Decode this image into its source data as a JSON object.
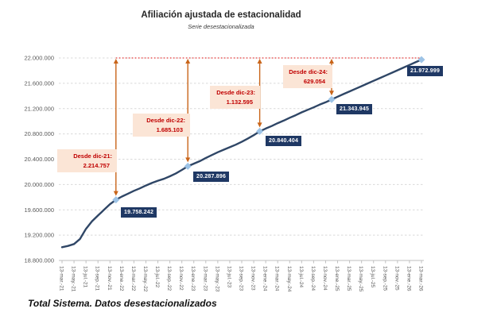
{
  "footer": {
    "text": "Total Sistema. Datos desestacionalizados"
  },
  "chart_data": {
    "type": "line",
    "title": "Afiliación ajustada de estacionalidad",
    "subtitle": "Serie desestacionalizada",
    "xlabel": "",
    "ylabel": "",
    "ylim": [
      18800000,
      22000000
    ],
    "y_step": 400000,
    "grid": "horizontal-dashed",
    "legend_position": "none",
    "y_tick_labels": [
      "22.000.000",
      "21.600.000",
      "21.200.000",
      "20.800.000",
      "20.400.000",
      "20.000.000",
      "19.600.000",
      "19.200.000",
      "18.800.000"
    ],
    "x_tick_labels": [
      "13-mar.-21",
      "13-may.-21",
      "13-jul.-21",
      "13-sep.-21",
      "13-nov.-21",
      "13-ene.-22",
      "13-mar.-22",
      "13-may.-22",
      "13-jul.-22",
      "13-sep.-22",
      "13-nov.-22",
      "13-ene.-23",
      "13-mar.-23",
      "13-may.-23",
      "13-jul.-23",
      "13-sep.-23",
      "13-nov.-23",
      "13-ene.-24",
      "13-mar.-24",
      "13-may.-24",
      "13-jul.-24",
      "13-sep.-24",
      "13-nov.-24",
      "13-ene.-25",
      "13-mar.-25",
      "13-may.-25",
      "13-jul.-25",
      "13-sep.-25",
      "13-nov.-25",
      "13-ene.-26",
      "13-mar.-26"
    ],
    "series": [
      {
        "name": "Serie desestacionalizada",
        "start_month": "mar-21",
        "end_month": "mar-26",
        "monthly_values": [
          19010000,
          19030000,
          19060000,
          19140000,
          19300000,
          19420000,
          19510000,
          19600000,
          19690000,
          19758242,
          19810000,
          19855000,
          19900000,
          19940000,
          19985000,
          20025000,
          20060000,
          20090000,
          20130000,
          20175000,
          20230000,
          20287896,
          20330000,
          20370000,
          20420000,
          20465000,
          20510000,
          20550000,
          20590000,
          20630000,
          20675000,
          20725000,
          20780000,
          20840404,
          20885000,
          20925000,
          20970000,
          21010000,
          21055000,
          21095000,
          21140000,
          21180000,
          21220000,
          21262000,
          21300000,
          21343945,
          21388000,
          21430000,
          21472000,
          21513000,
          21555000,
          21597000,
          21638000,
          21680000,
          21722000,
          21763000,
          21805000,
          21848000,
          21890000,
          21932000,
          21972999
        ]
      }
    ],
    "highlighted_points": [
      {
        "month_index": 9,
        "month": "dic-21",
        "value": 19758242,
        "label": "19.758.242"
      },
      {
        "month_index": 21,
        "month": "dic-22",
        "value": 20287896,
        "label": "20.287.896"
      },
      {
        "month_index": 33,
        "month": "dic-23",
        "value": 20840404,
        "label": "20.840.404"
      },
      {
        "month_index": 45,
        "month": "dic-24",
        "value": 21343945,
        "label": "21.343.945"
      },
      {
        "month_index": 60,
        "month": "mar-26",
        "value": 21972999,
        "label": "21.972.999"
      }
    ],
    "annotations": [
      {
        "label": "Desde dic-21:",
        "value": "2.214.757",
        "month_index": 9
      },
      {
        "label": "Desde dic-22:",
        "value": "1.685.103",
        "month_index": 21
      },
      {
        "label": "Desde dic-23:",
        "value": "1.132.595",
        "month_index": 33
      },
      {
        "label": "Desde dic-24:",
        "value": "629.054",
        "month_index": 45
      }
    ],
    "reference_line_value": 21972999,
    "colors": {
      "line": "#2F4666",
      "marker": "#9DC3E6",
      "point_label_bg": "#1F3864",
      "point_label_text": "#FFFFFF",
      "annotation_bg": "#FBE5D6",
      "annotation_text": "#C00000",
      "arrow": "#C9651A",
      "reference_line": "#E00000",
      "gridline": "#D9D9D9",
      "axis_line": "#BFBFBF",
      "axis_text": "#595959"
    }
  }
}
